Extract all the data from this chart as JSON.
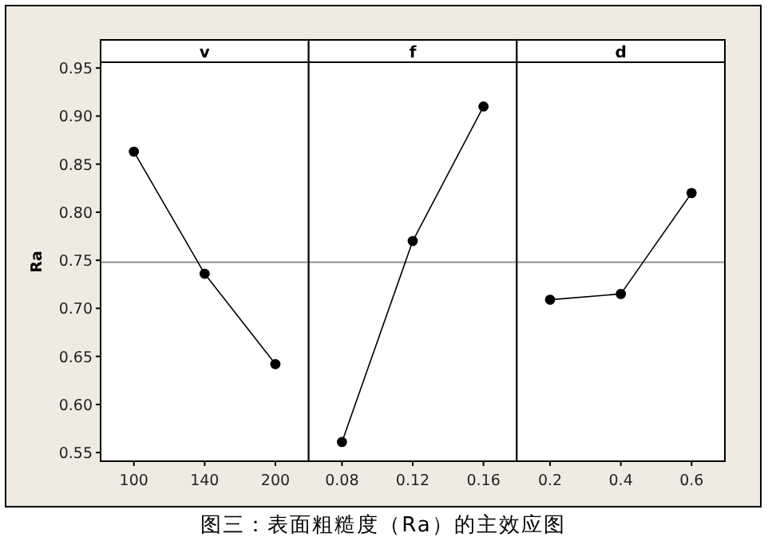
{
  "chart_data": [
    {
      "type": "line",
      "title": "v",
      "ylabel": "Ra",
      "categories": [
        "100",
        "140",
        "200"
      ],
      "values": [
        0.863,
        0.736,
        0.642
      ],
      "color": "#000000",
      "marker": "circle",
      "line_style": "solid",
      "ylim": [
        0.541,
        0.956
      ],
      "yticks": [
        {
          "value": 0.55,
          "label": "0.55"
        },
        {
          "value": 0.6,
          "label": "0.60"
        },
        {
          "value": 0.65,
          "label": "0.65"
        },
        {
          "value": 0.7,
          "label": "0.70"
        },
        {
          "value": 0.75,
          "label": "0.75"
        },
        {
          "value": 0.8,
          "label": "0.80"
        },
        {
          "value": 0.85,
          "label": "0.85"
        },
        {
          "value": 0.9,
          "label": "0.90"
        },
        {
          "value": 0.95,
          "label": "0.95"
        }
      ],
      "ref_lines": [
        {
          "axis": "y",
          "value": 0.748,
          "color": "#999999"
        }
      ],
      "annotations": [
        "图三：表面粗糙度（Ra）的主效应图"
      ]
    },
    {
      "type": "line",
      "title": "f",
      "categories": [
        "0.08",
        "0.12",
        "0.16"
      ],
      "values": [
        0.561,
        0.77,
        0.91
      ],
      "color": "#000000",
      "marker": "circle",
      "line_style": "solid",
      "ylim": [
        0.541,
        0.956
      ],
      "tick_labels": "x",
      "ref_lines": [
        {
          "axis": "y",
          "value": 0.748,
          "color": "#999999"
        }
      ]
    },
    {
      "type": "line",
      "title": "d",
      "categories": [
        "0.2",
        "0.4",
        "0.6"
      ],
      "values": [
        0.709,
        0.715,
        0.82
      ],
      "color": "#000000",
      "marker": "circle",
      "line_style": "solid",
      "ylim": [
        0.541,
        0.956
      ],
      "tick_labels": "x",
      "ref_lines": [
        {
          "axis": "y",
          "value": 0.748,
          "color": "#999999"
        }
      ]
    }
  ]
}
